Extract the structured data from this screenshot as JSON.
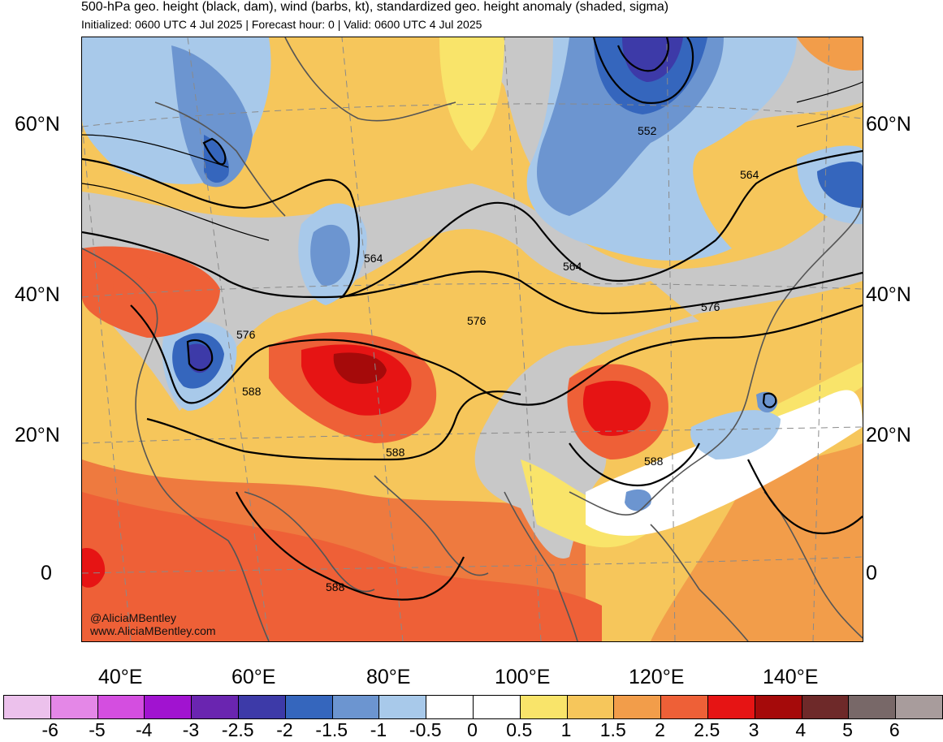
{
  "header": {
    "title": "500-hPa geo. height (black, dam), wind (barbs, kt), standardized geo. height anomaly (shaded, sigma)",
    "subtitle": "Initialized: 0600 UTC 4 Jul 2025 | Forecast hour: 0 | Valid: 0600 UTC 4 Jul 2025"
  },
  "axes": {
    "lat_labels": [
      "60°N",
      "40°N",
      "20°N",
      "0"
    ],
    "lon_labels": [
      "40°E",
      "60°E",
      "80°E",
      "100°E",
      "120°E",
      "140°E"
    ]
  },
  "contour_labels": [
    "564",
    "564",
    "552",
    "564",
    "576",
    "576",
    "576",
    "588",
    "588",
    "588",
    "588"
  ],
  "credit": {
    "handle": "@AliciaMBentley",
    "website": "www.AliciaMBentley.com"
  },
  "colorbar": {
    "labels": [
      "-6",
      "-5",
      "-4",
      "-3",
      "-2.5",
      "-2",
      "-1.5",
      "-1",
      "-0.5",
      "0",
      "0.5",
      "1",
      "1.5",
      "2",
      "2.5",
      "3",
      "4",
      "5",
      "6"
    ],
    "colors": [
      "#ecc1ec",
      "#e487e7",
      "#d44ee0",
      "#a113d0",
      "#6a25b0",
      "#3d3aa8",
      "#3566bd",
      "#6c95d0",
      "#a8c9ea",
      "#ffffff",
      "#ffffff",
      "#f9e46a",
      "#f6c65b",
      "#f29d4a",
      "#ee6037",
      "#e61414",
      "#a50a0a",
      "#6e2929",
      "#786868",
      "#a89c9c"
    ]
  }
}
